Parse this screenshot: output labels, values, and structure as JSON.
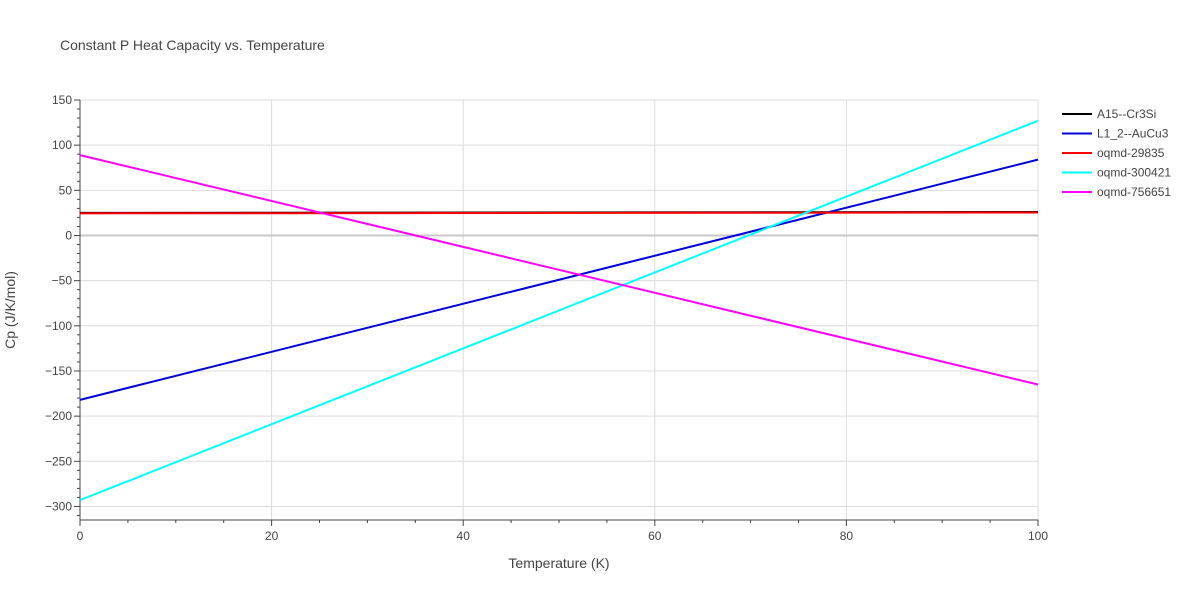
{
  "chart_data": {
    "type": "line",
    "title": "Constant P Heat Capacity vs. Temperature",
    "xlabel": "Temperature (K)",
    "ylabel": "Cp (J/K/mol)",
    "xlim": [
      0,
      100
    ],
    "ylim": [
      -315,
      150
    ],
    "xticks": [
      0,
      20,
      40,
      60,
      80,
      100
    ],
    "xtick_labels": [
      "0",
      "20",
      "40",
      "60",
      "80",
      "100"
    ],
    "yticks": [
      150,
      100,
      50,
      0,
      -50,
      -100,
      -150,
      -200,
      -250,
      -300
    ],
    "ytick_labels": [
      "150",
      "100",
      "50",
      "0",
      "−50",
      "−100",
      "−150",
      "−200",
      "−250",
      "−300"
    ],
    "grid": true,
    "legend_position": "top-right",
    "series": [
      {
        "name": "A15--Cr3Si",
        "color": "#000000",
        "x": [
          0,
          100
        ],
        "y": [
          25,
          26
        ]
      },
      {
        "name": "L1_2--AuCu3",
        "color": "#0000dd",
        "x": [
          0,
          100
        ],
        "y": [
          -182,
          84
        ]
      },
      {
        "name": "oqmd-29835",
        "color": "#ff0000",
        "x": [
          0,
          100
        ],
        "y": [
          24.5,
          25.5
        ]
      },
      {
        "name": "oqmd-300421",
        "color": "#00ffff",
        "x": [
          0,
          100
        ],
        "y": [
          -293,
          127
        ]
      },
      {
        "name": "oqmd-756651",
        "color": "#ff00ff",
        "x": [
          0,
          100
        ],
        "y": [
          89,
          -165
        ]
      }
    ]
  }
}
